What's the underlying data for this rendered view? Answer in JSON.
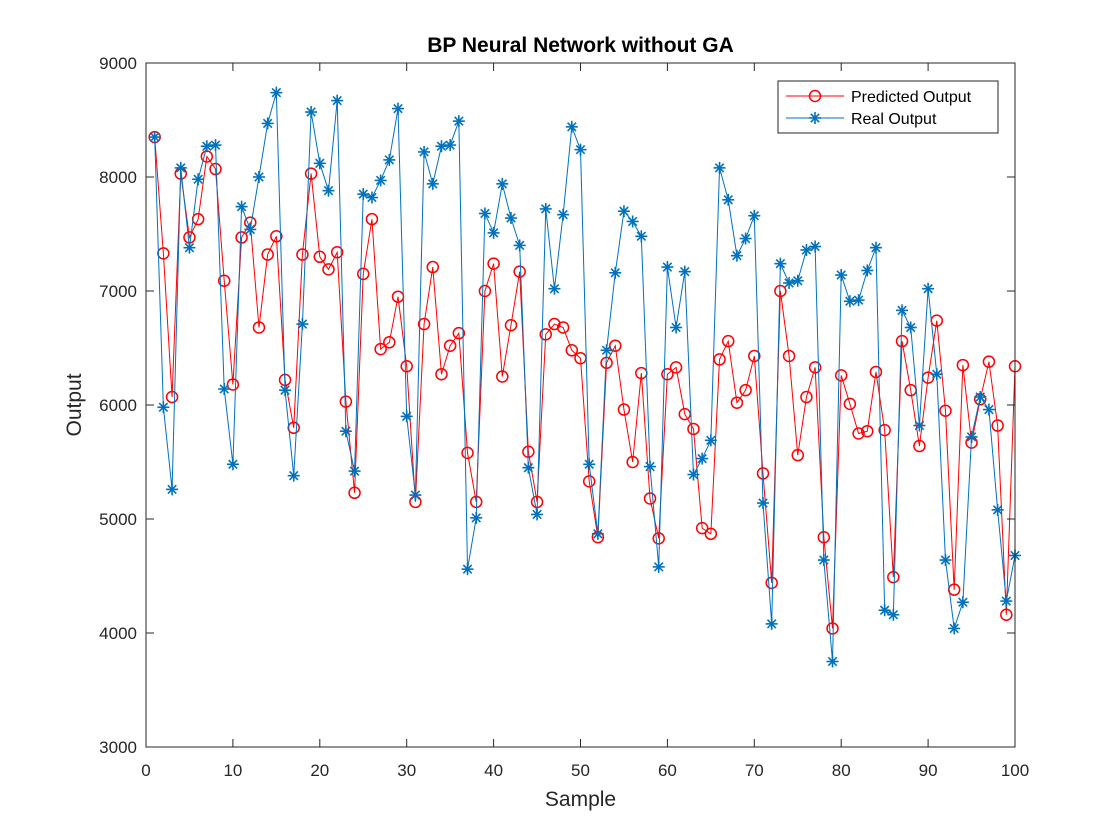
{
  "chart_data": {
    "type": "line",
    "title": "BP Neural Network without GA",
    "xlabel": "Sample",
    "ylabel": "Output",
    "xlim": [
      0,
      100
    ],
    "ylim": [
      3000,
      9000
    ],
    "xticks": [
      0,
      10,
      20,
      30,
      40,
      50,
      60,
      70,
      80,
      90,
      100
    ],
    "yticks": [
      3000,
      4000,
      5000,
      6000,
      7000,
      8000,
      9000
    ],
    "grid": false,
    "legend_position": "top-right",
    "x": [
      1,
      2,
      3,
      4,
      5,
      6,
      7,
      8,
      9,
      10,
      11,
      12,
      13,
      14,
      15,
      16,
      17,
      18,
      19,
      20,
      21,
      22,
      23,
      24,
      25,
      26,
      27,
      28,
      29,
      30,
      31,
      32,
      33,
      34,
      35,
      36,
      37,
      38,
      39,
      40,
      41,
      42,
      43,
      44,
      45,
      46,
      47,
      48,
      49,
      50,
      51,
      52,
      53,
      54,
      55,
      56,
      57,
      58,
      59,
      60,
      61,
      62,
      63,
      64,
      65,
      66,
      67,
      68,
      69,
      70,
      71,
      72,
      73,
      74,
      75,
      76,
      77,
      78,
      79,
      80,
      81,
      82,
      83,
      84,
      85,
      86,
      87,
      88,
      89,
      90,
      91,
      92,
      93,
      94,
      95,
      96,
      97,
      98,
      99,
      100
    ],
    "series": [
      {
        "name": "Predicted Output",
        "color": "#ff0000",
        "marker": "circle",
        "values": [
          8350,
          7330,
          6070,
          8030,
          7470,
          7630,
          8180,
          8070,
          7090,
          6180,
          7470,
          7600,
          6680,
          7320,
          7480,
          6220,
          5800,
          7320,
          8030,
          7300,
          7190,
          7340,
          6030,
          5230,
          7150,
          7630,
          6490,
          6550,
          6950,
          6340,
          5150,
          6710,
          7210,
          6270,
          6520,
          6630,
          5580,
          5150,
          7000,
          7240,
          6250,
          6700,
          7170,
          5590,
          5150,
          6620,
          6710,
          6680,
          6480,
          6410,
          5330,
          4840,
          6370,
          6520,
          5960,
          5500,
          6280,
          5180,
          4830,
          6270,
          6330,
          5920,
          5790,
          4920,
          4870,
          6400,
          6560,
          6020,
          6130,
          6430,
          5400,
          4440,
          7000,
          6430,
          5560,
          6070,
          6330,
          4840,
          4040,
          6260,
          6010,
          5750,
          5770,
          6290,
          5780,
          4490,
          6560,
          6130,
          5640,
          6240,
          6740,
          5950,
          4380,
          6350,
          5670,
          6050,
          6380,
          5820,
          4160,
          6340
        ]
      },
      {
        "name": "Real Output",
        "color": "#0072bd",
        "marker": "asterisk",
        "values": [
          8350,
          5980,
          5260,
          8080,
          7380,
          7980,
          8270,
          8280,
          6140,
          5480,
          7740,
          7540,
          8000,
          8470,
          8740,
          6130,
          5380,
          6710,
          8570,
          8120,
          7880,
          8670,
          5770,
          5420,
          7850,
          7820,
          7970,
          8150,
          8600,
          5900,
          5210,
          8220,
          7940,
          8270,
          8280,
          8490,
          4560,
          5010,
          7680,
          7510,
          7940,
          7640,
          7400,
          5450,
          5040,
          7720,
          7020,
          7670,
          8440,
          8240,
          5480,
          4870,
          6480,
          7160,
          7700,
          7610,
          7480,
          5460,
          4580,
          7210,
          6680,
          7170,
          5390,
          5530,
          5690,
          8080,
          7800,
          7310,
          7460,
          7660,
          5140,
          4080,
          7240,
          7070,
          7090,
          7360,
          7390,
          4640,
          3750,
          7140,
          6910,
          6920,
          7180,
          7380,
          4200,
          4160,
          6830,
          6680,
          5820,
          7020,
          6270,
          4640,
          4040,
          4270,
          5720,
          6070,
          5960,
          5080,
          4280,
          4680
        ]
      }
    ]
  }
}
